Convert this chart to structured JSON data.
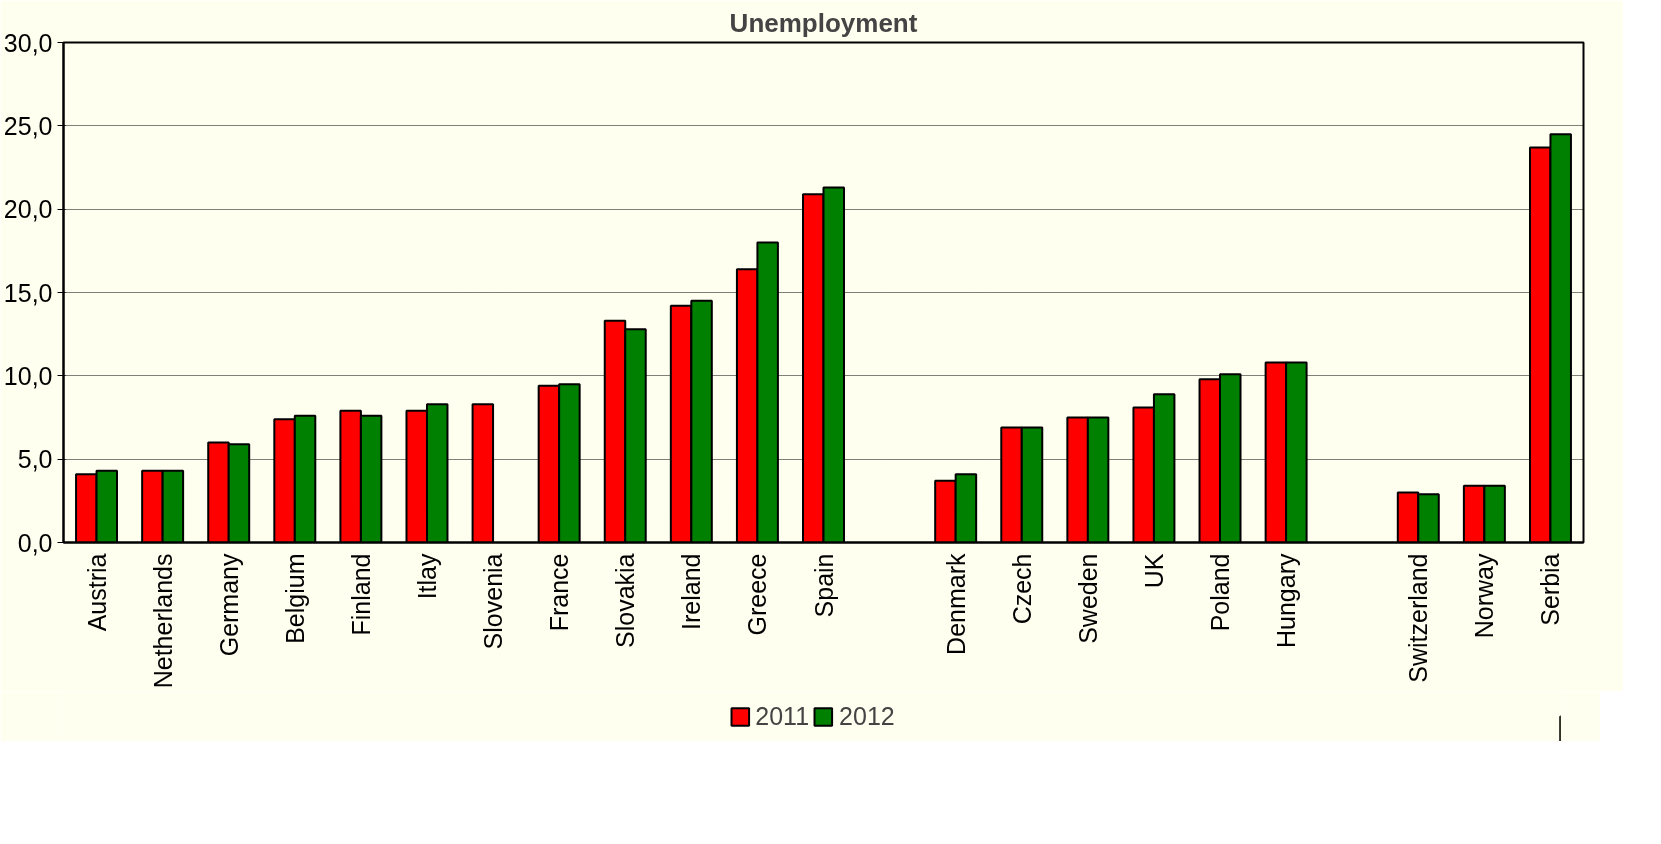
{
  "chart_data": {
    "type": "bar",
    "title": "Unemployment",
    "categories": [
      "Austria",
      "Netherlands",
      "Germany",
      "Belgium",
      "Finland",
      "Itlay",
      "Slovenia",
      "France",
      "Slovakia",
      "Ireland",
      "Greece",
      "Spain",
      null,
      "Denmark",
      "Czech",
      "Sweden",
      "UK",
      "Poland",
      "Hungary",
      null,
      "Switzerland",
      "Norway",
      "Serbia"
    ],
    "series": [
      {
        "name": "2011",
        "color": "#ff0000",
        "values": [
          4.1,
          4.3,
          6.0,
          7.4,
          7.9,
          7.9,
          8.3,
          9.4,
          13.3,
          14.2,
          16.4,
          20.9,
          null,
          3.7,
          6.9,
          7.5,
          8.1,
          9.8,
          10.8,
          null,
          3.0,
          3.4,
          23.7
        ]
      },
      {
        "name": "2012",
        "color": "#008000",
        "values": [
          4.3,
          4.3,
          5.9,
          7.6,
          7.6,
          8.3,
          null,
          9.5,
          12.8,
          14.5,
          18.0,
          21.3,
          null,
          4.1,
          6.9,
          7.5,
          8.9,
          10.1,
          10.8,
          null,
          2.9,
          3.4,
          24.5
        ]
      }
    ],
    "ylim": [
      0,
      30
    ],
    "yticks": [
      {
        "value": 0,
        "label": "0,0"
      },
      {
        "value": 5,
        "label": "5,0"
      },
      {
        "value": 10,
        "label": "10,0"
      },
      {
        "value": 15,
        "label": "15,0"
      },
      {
        "value": 20,
        "label": "20,0"
      },
      {
        "value": 25,
        "label": "25,0"
      },
      {
        "value": 30,
        "label": "30,0"
      }
    ],
    "grid": "y",
    "legend": "bottom"
  }
}
